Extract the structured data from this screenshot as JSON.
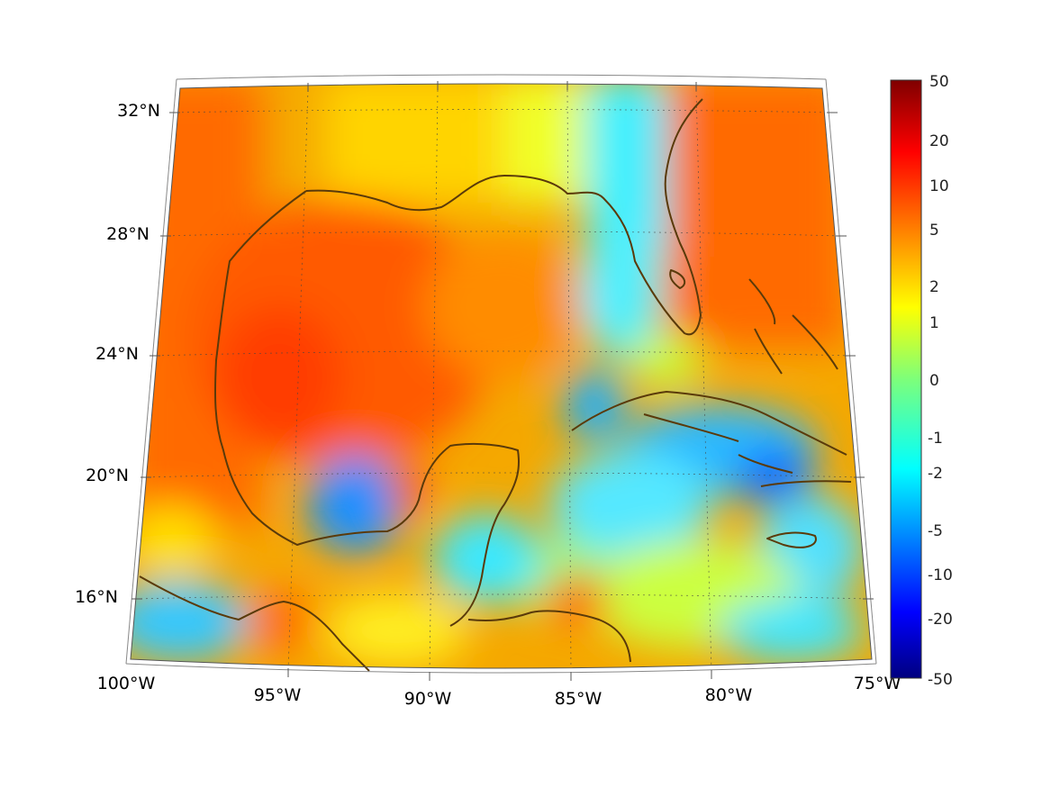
{
  "map": {
    "projection": "conic",
    "field": "scalar anomaly (colored)",
    "lon_range": [
      "100°W",
      "75°W"
    ],
    "lat_range": [
      "14°N",
      "33°N"
    ],
    "lon_ticks": [
      "100°W",
      "95°W",
      "90°W",
      "85°W",
      "80°W",
      "75°W"
    ],
    "lat_ticks": [
      "32°N",
      "28°N",
      "24°N",
      "20°N",
      "16°N"
    ],
    "coastline_color": "#5a3a0a",
    "graticule": "dotted"
  },
  "colorbar": {
    "colormap": "jet",
    "orientation": "vertical",
    "position": "right",
    "labels": [
      "50",
      "20",
      "10",
      "5",
      "2",
      "1",
      "0",
      "-1",
      "-2",
      "-5",
      "-10",
      "-20",
      "-50"
    ]
  }
}
